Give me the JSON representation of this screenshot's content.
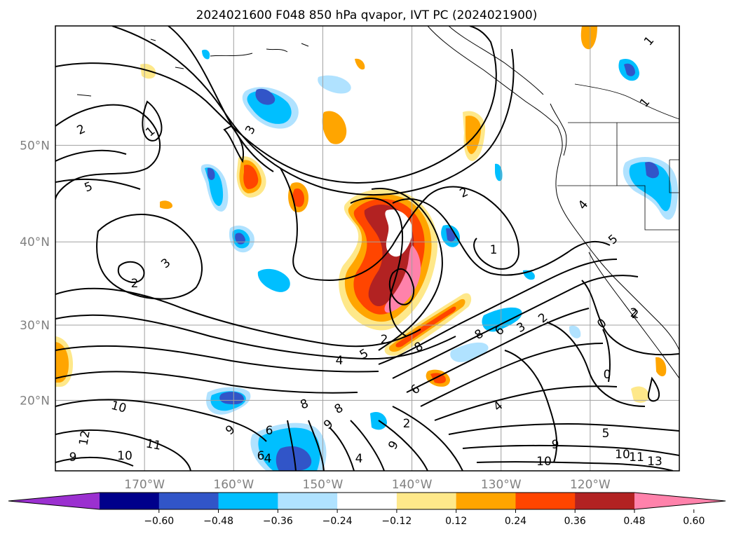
{
  "title": "2024021600 F048 850 hPa qvapor, IVT PC (2024021900)",
  "map": {
    "lon_range": [
      -180,
      -110
    ],
    "lat_range": [
      10,
      60
    ],
    "lat_ticks": [
      {
        "value": 20,
        "label": "20°N"
      },
      {
        "value": 30,
        "label": "30°N"
      },
      {
        "value": 40,
        "label": "40°N"
      },
      {
        "value": 50,
        "label": "50°N"
      }
    ],
    "lon_ticks": [
      {
        "value": -170,
        "label": "170°W"
      },
      {
        "value": -160,
        "label": "160°W"
      },
      {
        "value": -150,
        "label": "150°W"
      },
      {
        "value": -140,
        "label": "140°W"
      },
      {
        "value": -130,
        "label": "130°W"
      },
      {
        "value": -120,
        "label": "120°W"
      }
    ],
    "grid": true,
    "contour_labels": [
      "2",
      "1",
      "3",
      "5",
      "2",
      "3",
      "2",
      "1",
      "10",
      "12",
      "11",
      "10",
      "9",
      "9",
      "8",
      "8",
      "9",
      "6",
      "6",
      "4",
      "4",
      "5",
      "9",
      "6",
      "4",
      "8",
      "6",
      "3",
      "2",
      "8",
      "5",
      "10",
      "9",
      "10",
      "11",
      "13",
      "2",
      "0",
      "0",
      "4",
      "5",
      "1",
      "1",
      "2",
      "2",
      "4",
      "2"
    ]
  },
  "colorbar": {
    "tick_labels": [
      "−0.60",
      "−0.48",
      "−0.36",
      "−0.24",
      "−0.12",
      "0.12",
      "0.24",
      "0.36",
      "0.48",
      "0.60"
    ],
    "bins": [
      {
        "color": "#9b30d0"
      },
      {
        "color": "#00008b"
      },
      {
        "color": "#3155c8"
      },
      {
        "color": "#00bfff"
      },
      {
        "color": "#b0e2ff"
      },
      {
        "color": "#ffffff"
      },
      {
        "color": "#fee88a"
      },
      {
        "color": "#ffa500"
      },
      {
        "color": "#ff4500"
      },
      {
        "color": "#b22222"
      },
      {
        "color": "#ff82ab"
      }
    ]
  }
}
